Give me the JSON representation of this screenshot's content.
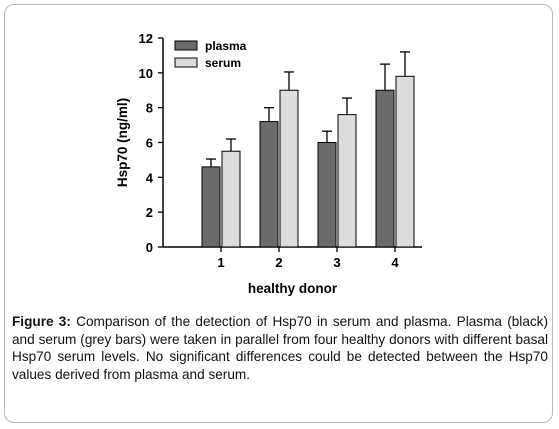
{
  "figure": {
    "label": "Figure 3:",
    "caption": " Comparison of the detection of Hsp70 in serum and plasma. Plasma (black) and serum (grey bars) were taken in parallel from four healthy donors with different basal Hsp70 serum levels. No significant differences could be detected between the Hsp70 values derived from plasma and serum."
  },
  "chart_data": {
    "type": "bar",
    "categories": [
      "1",
      "2",
      "3",
      "4"
    ],
    "series": [
      {
        "name": "plasma",
        "color": "#6b6b6b",
        "values": [
          4.6,
          7.2,
          6.0,
          9.0
        ],
        "errors": [
          0.45,
          0.8,
          0.65,
          1.5
        ]
      },
      {
        "name": "serum",
        "color": "#dcdcdc",
        "values": [
          5.5,
          9.0,
          7.6,
          9.8
        ],
        "errors": [
          0.7,
          1.05,
          0.95,
          1.4
        ]
      }
    ],
    "xlabel": "healthy donor",
    "ylabel": "Hsp70 (ng/ml)",
    "ylim": [
      0,
      12
    ],
    "yticks": [
      0,
      2,
      4,
      6,
      8,
      10,
      12
    ],
    "legend_position": "top-left",
    "grid": false
  }
}
